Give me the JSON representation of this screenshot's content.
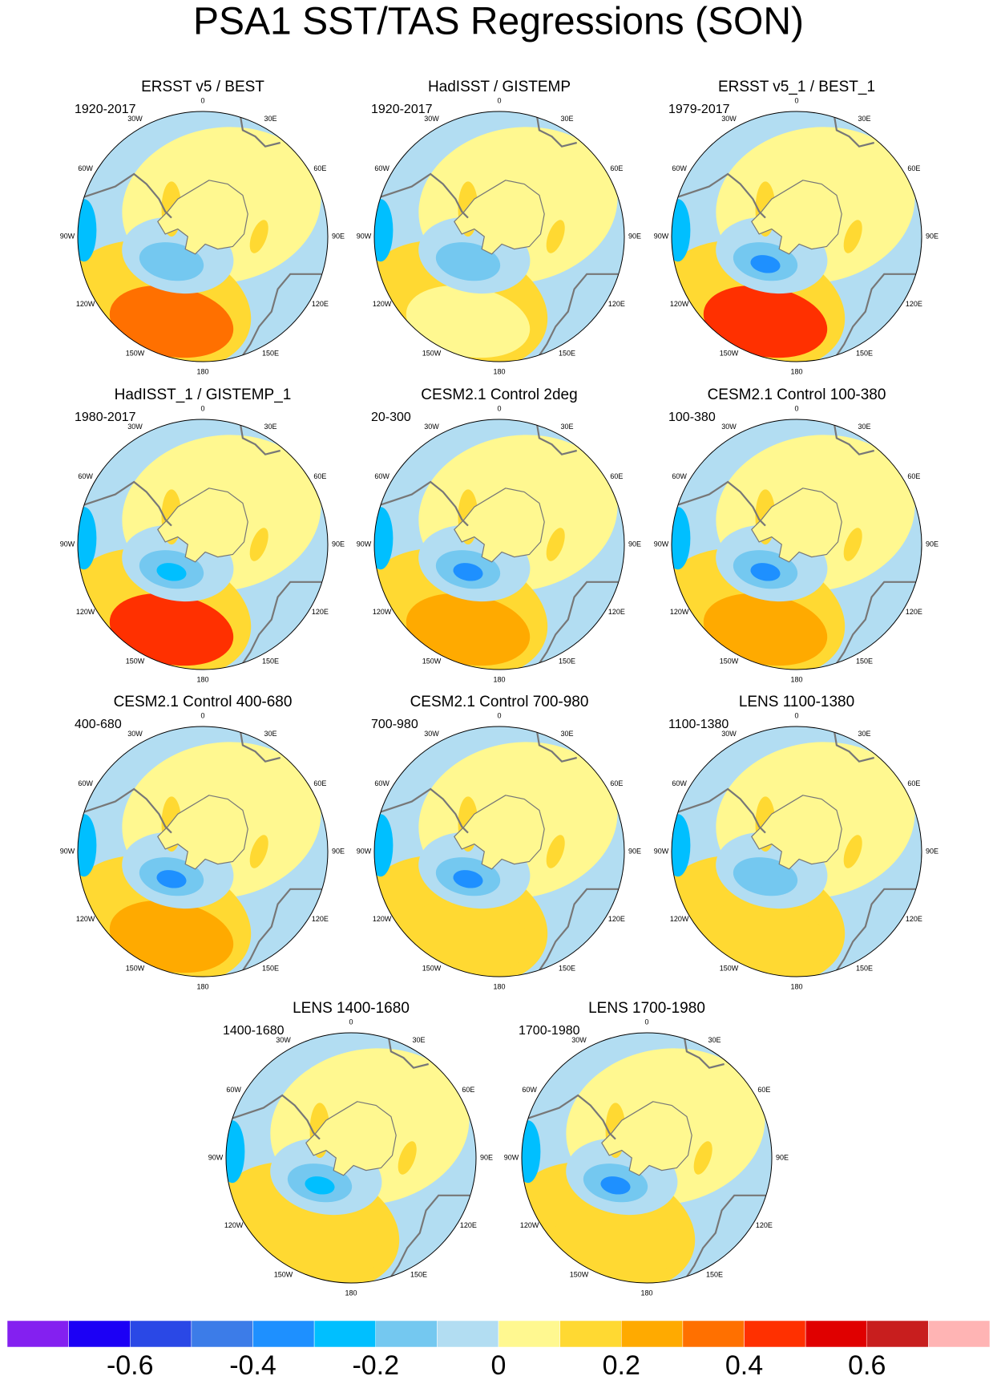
{
  "title": "PSA1 SST/TAS Regressions (SON)",
  "lon_labels": [
    "0",
    "30E",
    "60E",
    "90E",
    "120E",
    "150E",
    "180",
    "150W",
    "120W",
    "90W",
    "60W",
    "30W"
  ],
  "panels": [
    {
      "title": "ERSST v5 / BEST",
      "period": "1920-2017"
    },
    {
      "title": "HadISST / GISTEMP",
      "period": "1920-2017"
    },
    {
      "title": "ERSST v5_1 / BEST_1",
      "period": "1979-2017"
    },
    {
      "title": "HadISST_1 / GISTEMP_1",
      "period": "1980-2017"
    },
    {
      "title": "CESM2.1 Control 2deg",
      "period": "20-300"
    },
    {
      "title": "CESM2.1 Control 100-380",
      "period": "100-380"
    },
    {
      "title": "CESM2.1 Control 400-680",
      "period": "400-680"
    },
    {
      "title": "CESM2.1 Control 700-980",
      "period": "700-980"
    },
    {
      "title": "LENS 1100-1380",
      "period": "1100-1380"
    },
    {
      "title": "LENS 1400-1680",
      "period": "1400-1680"
    },
    {
      "title": "LENS 1700-1980",
      "period": "1700-1980"
    }
  ],
  "colorbar": {
    "colors": [
      "#8420f0",
      "#1c00f5",
      "#2a48e6",
      "#3c7ce8",
      "#1e90ff",
      "#00bfff",
      "#74c8f0",
      "#b2ddf2",
      "#fff890",
      "#ffd932",
      "#ffaa00",
      "#ff7000",
      "#ff3000",
      "#e00000",
      "#c81e1e",
      "#ffb4b4"
    ],
    "lim": [
      -0.8,
      0.8
    ],
    "ticks": [
      -0.6,
      -0.4,
      -0.2,
      0,
      0.2,
      0.4,
      0.6
    ]
  }
}
